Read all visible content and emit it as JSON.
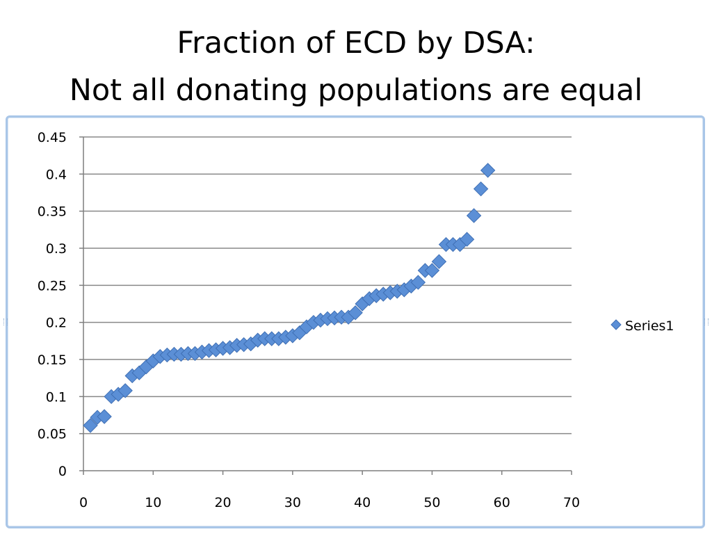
{
  "slide": {
    "title_line1": "Fraction of ECD by DSA:",
    "title_line2": "Not all donating populations are equal"
  },
  "chart_data": {
    "type": "scatter",
    "title": "",
    "xlabel": "",
    "ylabel": "",
    "xlim": [
      0,
      70
    ],
    "ylim": [
      0,
      0.45
    ],
    "x_ticks": [
      0,
      10,
      20,
      30,
      40,
      50,
      60,
      70
    ],
    "y_ticks": [
      0,
      0.05,
      0.1,
      0.15,
      0.2,
      0.25,
      0.3,
      0.35,
      0.4,
      0.45
    ],
    "x_tick_labels": [
      "0",
      "10",
      "20",
      "30",
      "40",
      "50",
      "60",
      "70"
    ],
    "y_tick_labels": [
      "0",
      "0.05",
      "0.1",
      "0.15",
      "0.2",
      "0.25",
      "0.3",
      "0.35",
      "0.4",
      "0.45"
    ],
    "grid": "horizontal",
    "legend": "right",
    "marker": "diamond",
    "colors": {
      "marker_fill": "#5b8fd6",
      "marker_stroke": "#3f6fb4",
      "gridline": "#888888",
      "axis": "#7f7f7f"
    },
    "series": [
      {
        "name": "Series1",
        "x": [
          1,
          2,
          3,
          4,
          5,
          6,
          7,
          8,
          9,
          10,
          11,
          12,
          13,
          14,
          15,
          16,
          17,
          18,
          19,
          20,
          21,
          22,
          23,
          24,
          25,
          26,
          27,
          28,
          29,
          30,
          31,
          32,
          33,
          34,
          35,
          36,
          37,
          38,
          39,
          40,
          41,
          42,
          43,
          44,
          45,
          46,
          47,
          48,
          49,
          50,
          51,
          52,
          53,
          54,
          55,
          56,
          57,
          58
        ],
        "y": [
          0.061,
          0.072,
          0.073,
          0.1,
          0.103,
          0.108,
          0.128,
          0.132,
          0.14,
          0.148,
          0.154,
          0.156,
          0.157,
          0.157,
          0.158,
          0.158,
          0.16,
          0.162,
          0.163,
          0.165,
          0.166,
          0.169,
          0.17,
          0.171,
          0.176,
          0.178,
          0.178,
          0.178,
          0.18,
          0.182,
          0.186,
          0.194,
          0.2,
          0.203,
          0.205,
          0.206,
          0.207,
          0.207,
          0.213,
          0.225,
          0.232,
          0.236,
          0.238,
          0.24,
          0.242,
          0.244,
          0.249,
          0.254,
          0.27,
          0.27,
          0.282,
          0.305,
          0.305,
          0.305,
          0.312,
          0.344,
          0.38,
          0.405
        ]
      }
    ]
  }
}
